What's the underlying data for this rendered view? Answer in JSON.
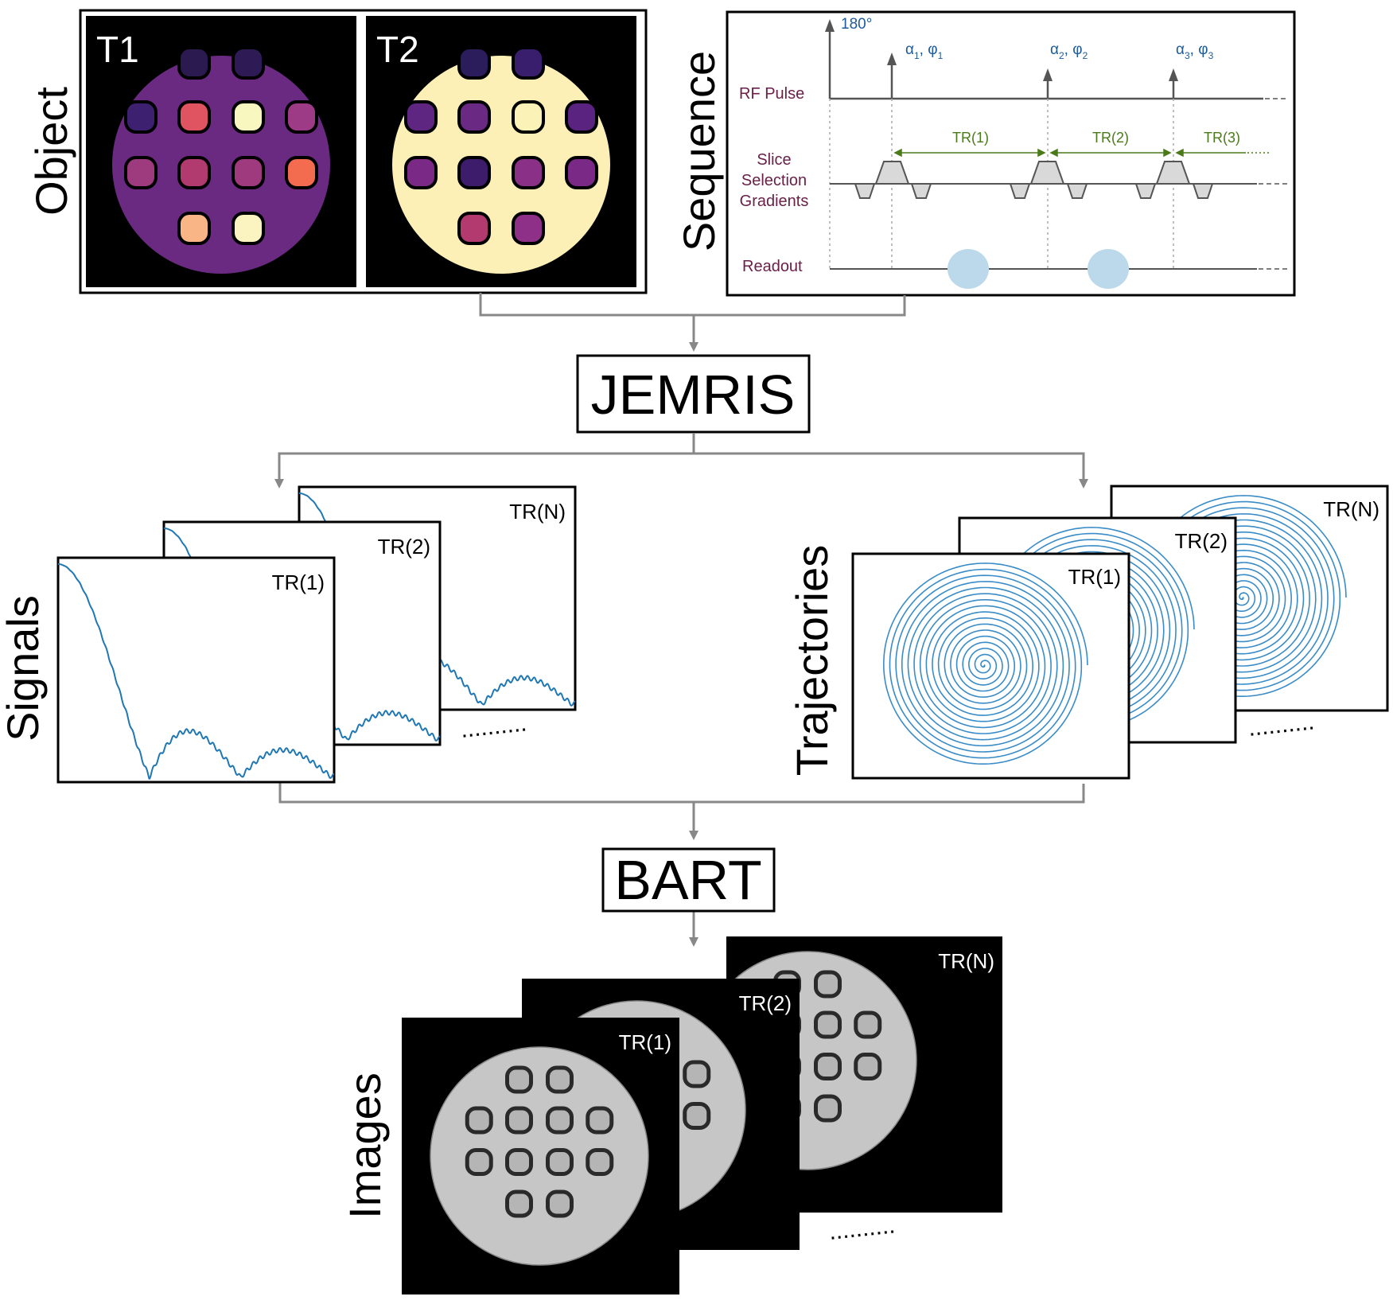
{
  "sections": {
    "object": "Object",
    "sequence": "Sequence",
    "signals": "Signals",
    "trajectories": "Trajectories",
    "images": "Images"
  },
  "object": {
    "t1_label": "T1",
    "t2_label": "T2",
    "t1_colors": {
      "background": "#6b2a82",
      "vials": [
        "#2b1a4f",
        "#2e1a55",
        "#3e2070",
        "#e05462",
        "#f8f7c0",
        "#9e3b86",
        "#9e3b7e",
        "#b13a6e",
        "#a03a7e",
        "#f46c50",
        "#f9b585",
        "#fbf4c0"
      ]
    },
    "t2_colors": {
      "background": "#fcf0b6",
      "vials": [
        "#2b1c5c",
        "#3a1e6e",
        "#5e2680",
        "#6a2a84",
        "#fbf2b8",
        "#5a2380",
        "#7a2a86",
        "#3e1c6c",
        "#8a3086",
        "#7a2a86",
        "#b23a6e",
        "#8e3088"
      ]
    }
  },
  "sequence": {
    "angle_label": "180°",
    "alphas": [
      {
        "alpha": "α",
        "sub_a": "1",
        "phi": "φ",
        "sub_p": "1"
      },
      {
        "alpha": "α",
        "sub_a": "2",
        "phi": "φ",
        "sub_p": "2"
      },
      {
        "alpha": "α",
        "sub_a": "3",
        "phi": "φ",
        "sub_p": "3"
      }
    ],
    "rf_label": "RF Pulse",
    "slice_label_1": "Slice",
    "slice_label_2": "Selection",
    "slice_label_3": "Gradients",
    "readout_label": "Readout",
    "tr_labels": [
      "TR(1)",
      "TR(2)",
      "TR(3)"
    ],
    "colors": {
      "rf": "#6a2048",
      "tr": "#4a7a1a",
      "alpha": "#1f5a9a",
      "readout": "#bcd9ec"
    }
  },
  "jemris_label": "JEMRIS",
  "bart_label": "BART",
  "signals": {
    "labels": [
      "TR(N)",
      "TR(2)",
      "TR(1)"
    ],
    "ellipsis": "..........",
    "line_color": "#1f77b4"
  },
  "trajectories": {
    "labels": [
      "TR(N)",
      "TR(2)",
      "TR(1)"
    ],
    "ellipsis": "..........",
    "line_color": "#3a8cc8"
  },
  "images": {
    "labels": [
      "TR(N)",
      "TR(2)",
      "TR(1)"
    ],
    "ellipsis": ".........."
  }
}
